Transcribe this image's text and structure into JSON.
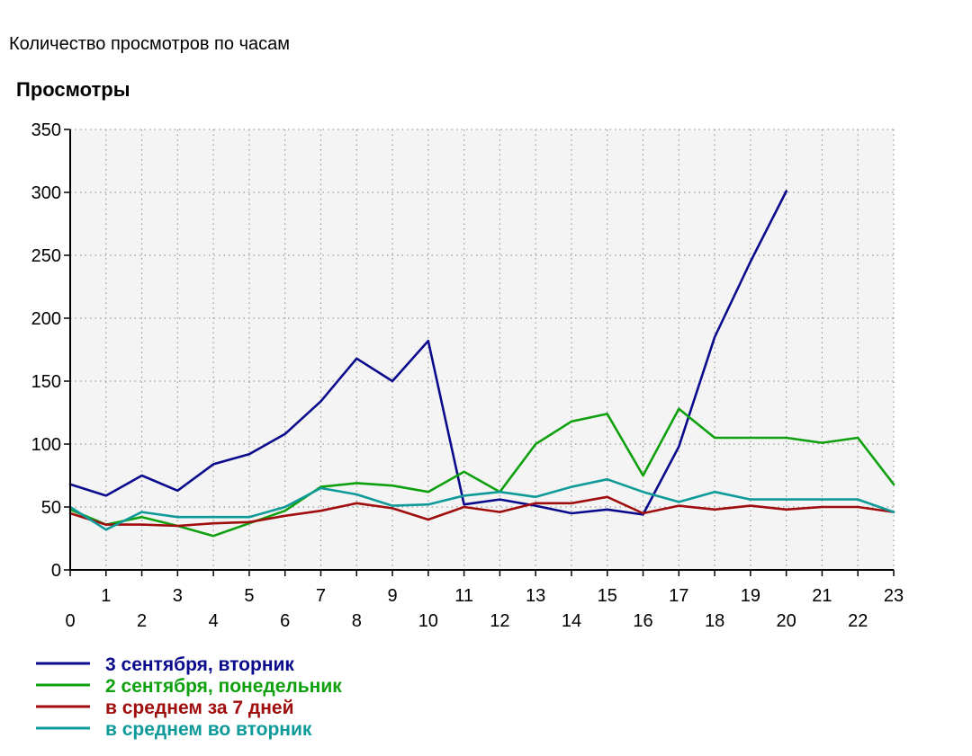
{
  "page": {
    "caption": "Количество просмотров по часам"
  },
  "chart_data": {
    "type": "line",
    "ylabel": "Просмотры",
    "xlabel": "",
    "ylim": [
      0,
      350
    ],
    "yticks": [
      0,
      50,
      100,
      150,
      200,
      250,
      300,
      350
    ],
    "x": [
      0,
      1,
      2,
      3,
      4,
      5,
      6,
      7,
      8,
      9,
      10,
      11,
      12,
      13,
      14,
      15,
      16,
      17,
      18,
      19,
      20,
      21,
      22,
      23
    ],
    "grid": true,
    "legend_position": "bottom-left",
    "series": [
      {
        "name": "3 сентября, вторник",
        "color": "#0a0a8c",
        "values": [
          68,
          59,
          75,
          63,
          84,
          92,
          108,
          134,
          168,
          150,
          182,
          52,
          56,
          51,
          45,
          48,
          44,
          98,
          185,
          245,
          301,
          null,
          null,
          null
        ]
      },
      {
        "name": "2 сентября, понедельник",
        "color": "#0ea00e",
        "values": [
          48,
          36,
          42,
          35,
          27,
          37,
          47,
          66,
          69,
          67,
          62,
          78,
          62,
          100,
          118,
          124,
          75,
          128,
          105,
          105,
          105,
          101,
          105,
          68
        ]
      },
      {
        "name": "в среднем за 7 дней",
        "color": "#a00d0d",
        "values": [
          45,
          36,
          36,
          35,
          37,
          38,
          43,
          47,
          53,
          49,
          40,
          50,
          46,
          53,
          53,
          58,
          45,
          51,
          48,
          51,
          48,
          50,
          50,
          46
        ]
      },
      {
        "name": "в среднем во вторник",
        "color": "#0f9a9a",
        "values": [
          50,
          32,
          46,
          42,
          42,
          42,
          50,
          65,
          60,
          51,
          52,
          59,
          62,
          58,
          66,
          72,
          62,
          54,
          62,
          56,
          56,
          56,
          56,
          46
        ]
      }
    ]
  }
}
